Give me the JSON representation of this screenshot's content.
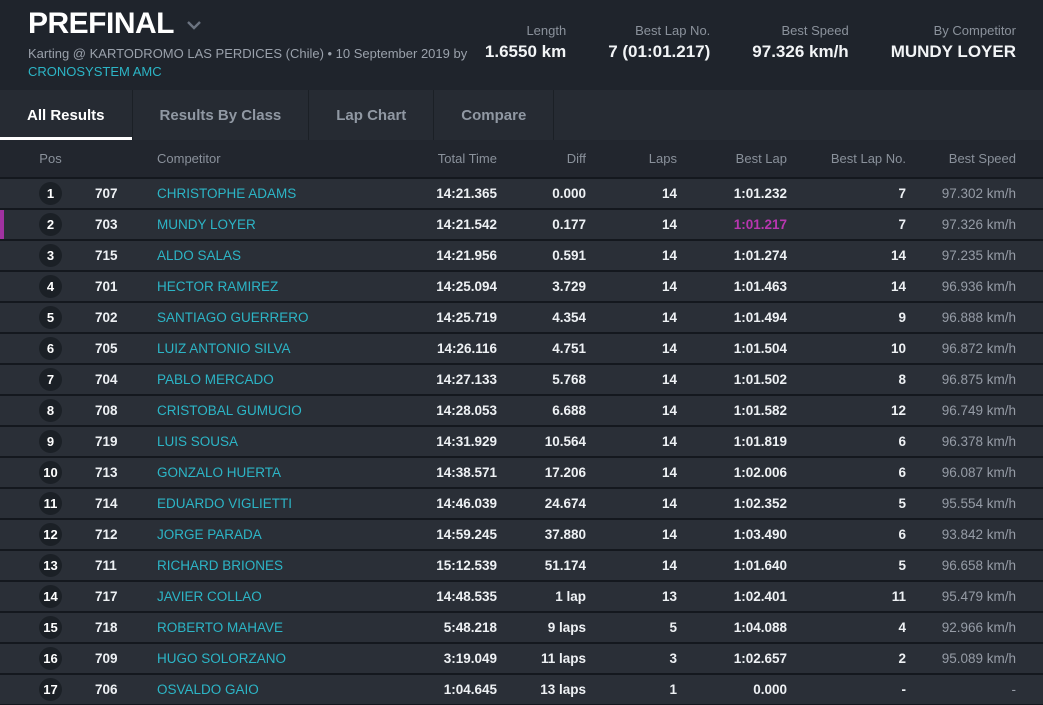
{
  "header": {
    "title": "PREFINAL",
    "subtitle": "Karting @ KARTODROMO LAS PERDICES (Chile) • 10 September 2019 by",
    "organizer_link": "CRONOSYSTEM AMC",
    "stats": [
      {
        "label": "Length",
        "value": "1.6550 km"
      },
      {
        "label": "Best Lap No.",
        "value": "7 (01:01.217)"
      },
      {
        "label": "Best Speed",
        "value": "97.326 km/h"
      },
      {
        "label": "By Competitor",
        "value": "MUNDY LOYER"
      }
    ]
  },
  "tabs": [
    {
      "label": "All Results",
      "active": true
    },
    {
      "label": "Results By Class",
      "active": false
    },
    {
      "label": "Lap Chart",
      "active": false
    },
    {
      "label": "Compare",
      "active": false
    }
  ],
  "table": {
    "columns": [
      "Pos",
      "Competitor",
      "Total Time",
      "Diff",
      "Laps",
      "Best Lap",
      "Best Lap No.",
      "Best Speed"
    ],
    "rows": [
      {
        "pos": "1",
        "no": "707",
        "competitor": "CHRISTOPHE ADAMS",
        "total_time": "14:21.365",
        "diff": "0.000",
        "laps": "14",
        "best_lap": "1:01.232",
        "best_lap_no": "7",
        "best_speed": "97.302 km/h",
        "highlighted": false,
        "best_lap_highlight": false
      },
      {
        "pos": "2",
        "no": "703",
        "competitor": "MUNDY LOYER",
        "total_time": "14:21.542",
        "diff": "0.177",
        "laps": "14",
        "best_lap": "1:01.217",
        "best_lap_no": "7",
        "best_speed": "97.326 km/h",
        "highlighted": true,
        "best_lap_highlight": true
      },
      {
        "pos": "3",
        "no": "715",
        "competitor": "ALDO SALAS",
        "total_time": "14:21.956",
        "diff": "0.591",
        "laps": "14",
        "best_lap": "1:01.274",
        "best_lap_no": "14",
        "best_speed": "97.235 km/h",
        "highlighted": false,
        "best_lap_highlight": false
      },
      {
        "pos": "4",
        "no": "701",
        "competitor": "HECTOR RAMIREZ",
        "total_time": "14:25.094",
        "diff": "3.729",
        "laps": "14",
        "best_lap": "1:01.463",
        "best_lap_no": "14",
        "best_speed": "96.936 km/h",
        "highlighted": false,
        "best_lap_highlight": false
      },
      {
        "pos": "5",
        "no": "702",
        "competitor": "SANTIAGO GUERRERO",
        "total_time": "14:25.719",
        "diff": "4.354",
        "laps": "14",
        "best_lap": "1:01.494",
        "best_lap_no": "9",
        "best_speed": "96.888 km/h",
        "highlighted": false,
        "best_lap_highlight": false
      },
      {
        "pos": "6",
        "no": "705",
        "competitor": "LUIZ ANTONIO SILVA",
        "total_time": "14:26.116",
        "diff": "4.751",
        "laps": "14",
        "best_lap": "1:01.504",
        "best_lap_no": "10",
        "best_speed": "96.872 km/h",
        "highlighted": false,
        "best_lap_highlight": false
      },
      {
        "pos": "7",
        "no": "704",
        "competitor": "PABLO MERCADO",
        "total_time": "14:27.133",
        "diff": "5.768",
        "laps": "14",
        "best_lap": "1:01.502",
        "best_lap_no": "8",
        "best_speed": "96.875 km/h",
        "highlighted": false,
        "best_lap_highlight": false
      },
      {
        "pos": "8",
        "no": "708",
        "competitor": "CRISTOBAL GUMUCIO",
        "total_time": "14:28.053",
        "diff": "6.688",
        "laps": "14",
        "best_lap": "1:01.582",
        "best_lap_no": "12",
        "best_speed": "96.749 km/h",
        "highlighted": false,
        "best_lap_highlight": false
      },
      {
        "pos": "9",
        "no": "719",
        "competitor": "LUIS SOUSA",
        "total_time": "14:31.929",
        "diff": "10.564",
        "laps": "14",
        "best_lap": "1:01.819",
        "best_lap_no": "6",
        "best_speed": "96.378 km/h",
        "highlighted": false,
        "best_lap_highlight": false
      },
      {
        "pos": "10",
        "no": "713",
        "competitor": "GONZALO HUERTA",
        "total_time": "14:38.571",
        "diff": "17.206",
        "laps": "14",
        "best_lap": "1:02.006",
        "best_lap_no": "6",
        "best_speed": "96.087 km/h",
        "highlighted": false,
        "best_lap_highlight": false
      },
      {
        "pos": "11",
        "no": "714",
        "competitor": "EDUARDO VIGLIETTI",
        "total_time": "14:46.039",
        "diff": "24.674",
        "laps": "14",
        "best_lap": "1:02.352",
        "best_lap_no": "5",
        "best_speed": "95.554 km/h",
        "highlighted": false,
        "best_lap_highlight": false
      },
      {
        "pos": "12",
        "no": "712",
        "competitor": "JORGE PARADA",
        "total_time": "14:59.245",
        "diff": "37.880",
        "laps": "14",
        "best_lap": "1:03.490",
        "best_lap_no": "6",
        "best_speed": "93.842 km/h",
        "highlighted": false,
        "best_lap_highlight": false
      },
      {
        "pos": "13",
        "no": "711",
        "competitor": "RICHARD BRIONES",
        "total_time": "15:12.539",
        "diff": "51.174",
        "laps": "14",
        "best_lap": "1:01.640",
        "best_lap_no": "5",
        "best_speed": "96.658 km/h",
        "highlighted": false,
        "best_lap_highlight": false
      },
      {
        "pos": "14",
        "no": "717",
        "competitor": "JAVIER COLLAO",
        "total_time": "14:48.535",
        "diff": "1 lap",
        "laps": "13",
        "best_lap": "1:02.401",
        "best_lap_no": "11",
        "best_speed": "95.479 km/h",
        "highlighted": false,
        "best_lap_highlight": false
      },
      {
        "pos": "15",
        "no": "718",
        "competitor": "ROBERTO MAHAVE",
        "total_time": "5:48.218",
        "diff": "9 laps",
        "laps": "5",
        "best_lap": "1:04.088",
        "best_lap_no": "4",
        "best_speed": "92.966 km/h",
        "highlighted": false,
        "best_lap_highlight": false
      },
      {
        "pos": "16",
        "no": "709",
        "competitor": "HUGO SOLORZANO",
        "total_time": "3:19.049",
        "diff": "11 laps",
        "laps": "3",
        "best_lap": "1:02.657",
        "best_lap_no": "2",
        "best_speed": "95.089 km/h",
        "highlighted": false,
        "best_lap_highlight": false
      },
      {
        "pos": "17",
        "no": "706",
        "competitor": "OSVALDO GAIO",
        "total_time": "1:04.645",
        "diff": "13 laps",
        "laps": "1",
        "best_lap": "0.000",
        "best_lap_no": "-",
        "best_speed": "-",
        "highlighted": false,
        "best_lap_highlight": false
      }
    ]
  },
  "colors": {
    "accent_cyan": "#2cb5c6",
    "highlight_magenta": "#a032a0",
    "best_lap_pink": "#b836b0",
    "row_bg": "#2a2f37",
    "header_bg": "#1f242c"
  }
}
